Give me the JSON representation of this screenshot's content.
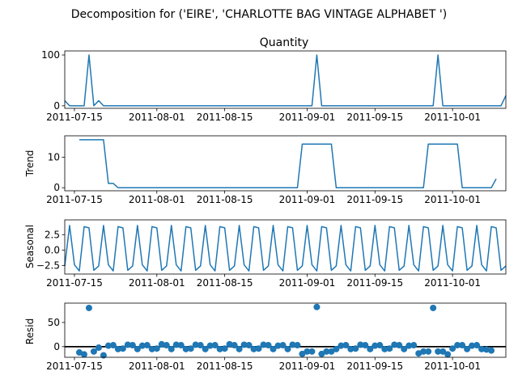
{
  "figure": {
    "suptitle": "Decomposition for ('EIRE', 'CHARLOTTE BAG VINTAGE ALPHABET ')"
  },
  "colors": {
    "line": "#1f77b4",
    "zero_line": "#000000",
    "axes": "#000000",
    "background": "#ffffff"
  },
  "chart_data": [
    {
      "type": "line",
      "title": "Quantity",
      "ylabel": "",
      "x_start": "2011-07-13",
      "x_end": "2011-10-12",
      "xticks": [
        "2011-07-15",
        "2011-08-01",
        "2011-08-15",
        "2011-09-01",
        "2011-09-15",
        "2011-10-01"
      ],
      "yticks": [
        0,
        100
      ],
      "ylim": [
        -5,
        108
      ],
      "grid": false,
      "series": [
        {
          "values": [
            10,
            0,
            0,
            0,
            0,
            100,
            0,
            10,
            0,
            0,
            0,
            0,
            0,
            0,
            0,
            0,
            0,
            0,
            0,
            0,
            0,
            0,
            0,
            0,
            0,
            0,
            0,
            0,
            0,
            0,
            0,
            0,
            0,
            0,
            0,
            0,
            0,
            0,
            0,
            0,
            0,
            0,
            0,
            0,
            0,
            0,
            0,
            0,
            0,
            0,
            0,
            0,
            100,
            0,
            0,
            0,
            0,
            0,
            0,
            0,
            0,
            0,
            0,
            0,
            0,
            0,
            0,
            0,
            0,
            0,
            0,
            0,
            0,
            0,
            0,
            0,
            0,
            100,
            0,
            0,
            0,
            0,
            0,
            0,
            0,
            0,
            0,
            0,
            0,
            0,
            0,
            20
          ]
        }
      ]
    },
    {
      "type": "line",
      "title": "",
      "ylabel": "Trend",
      "x_start": "2011-07-13",
      "x_end": "2011-10-12",
      "xticks": [
        "2011-07-15",
        "2011-08-01",
        "2011-08-15",
        "2011-09-01",
        "2011-09-15",
        "2011-10-01"
      ],
      "yticks": [
        0,
        10
      ],
      "ylim": [
        -1,
        17
      ],
      "grid": false,
      "series": [
        {
          "values": [
            null,
            null,
            null,
            15.7,
            15.7,
            15.7,
            15.7,
            15.7,
            15.7,
            1.4,
            1.4,
            0,
            0,
            0,
            0,
            0,
            0,
            0,
            0,
            0,
            0,
            0,
            0,
            0,
            0,
            0,
            0,
            0,
            0,
            0,
            0,
            0,
            0,
            0,
            0,
            0,
            0,
            0,
            0,
            0,
            0,
            0,
            0,
            0,
            0,
            0,
            0,
            0,
            0,
            14.3,
            14.3,
            14.3,
            14.3,
            14.3,
            14.3,
            14.3,
            0,
            0,
            0,
            0,
            0,
            0,
            0,
            0,
            0,
            0,
            0,
            0,
            0,
            0,
            0,
            0,
            0,
            0,
            0,
            14.3,
            14.3,
            14.3,
            14.3,
            14.3,
            14.3,
            14.3,
            0,
            0,
            0,
            0,
            0,
            0,
            0,
            2.9,
            null,
            null,
            null
          ]
        }
      ]
    },
    {
      "type": "line",
      "title": "",
      "ylabel": "Seasonal",
      "x_start": "2011-07-13",
      "x_end": "2011-10-12",
      "xticks": [
        "2011-07-15",
        "2011-08-01",
        "2011-08-15",
        "2011-09-01",
        "2011-09-15",
        "2011-10-01"
      ],
      "yticks": [
        -2.5,
        0.0,
        2.5
      ],
      "ytick_labels": [
        "−2.5",
        "0.0",
        "2.5"
      ],
      "ylim": [
        -3.9,
        4.9
      ],
      "grid": false,
      "series": [
        {
          "season": [
            -3.3,
            -2.6,
            4.0,
            -2.4,
            -3.4,
            3.8,
            3.6
          ],
          "start_phase": 1
        }
      ]
    },
    {
      "type": "scatter",
      "title": "",
      "ylabel": "Resid",
      "x_start": "2011-07-13",
      "x_end": "2011-10-12",
      "xticks": [
        "2011-07-15",
        "2011-08-01",
        "2011-08-15",
        "2011-09-01",
        "2011-09-15",
        "2011-10-01"
      ],
      "yticks": [
        0,
        50
      ],
      "ylim": [
        -22,
        90
      ],
      "zero_line": true,
      "grid": false,
      "series": [
        {
          "values": [
            null,
            null,
            null,
            -12,
            -16,
            80,
            -10,
            -2,
            -18,
            2,
            3,
            -5,
            -4,
            4,
            3,
            -5,
            2,
            3,
            -5,
            -4,
            5,
            3,
            -5,
            4,
            3,
            -5,
            -4,
            4,
            3,
            -5,
            2,
            3,
            -5,
            -4,
            5,
            3,
            -5,
            4,
            3,
            -5,
            -4,
            4,
            3,
            -5,
            2,
            3,
            -5,
            4,
            3,
            -15,
            -10,
            -10,
            82,
            -15,
            -10,
            -10,
            -5,
            2,
            3,
            -5,
            -4,
            4,
            3,
            -5,
            2,
            3,
            -5,
            -4,
            4,
            3,
            -5,
            2,
            3,
            -14,
            -10,
            -10,
            80,
            -10,
            -10,
            -16,
            -4,
            3,
            3,
            -5,
            2,
            3,
            -5,
            -6,
            -8,
            null,
            null,
            null
          ]
        }
      ]
    }
  ]
}
